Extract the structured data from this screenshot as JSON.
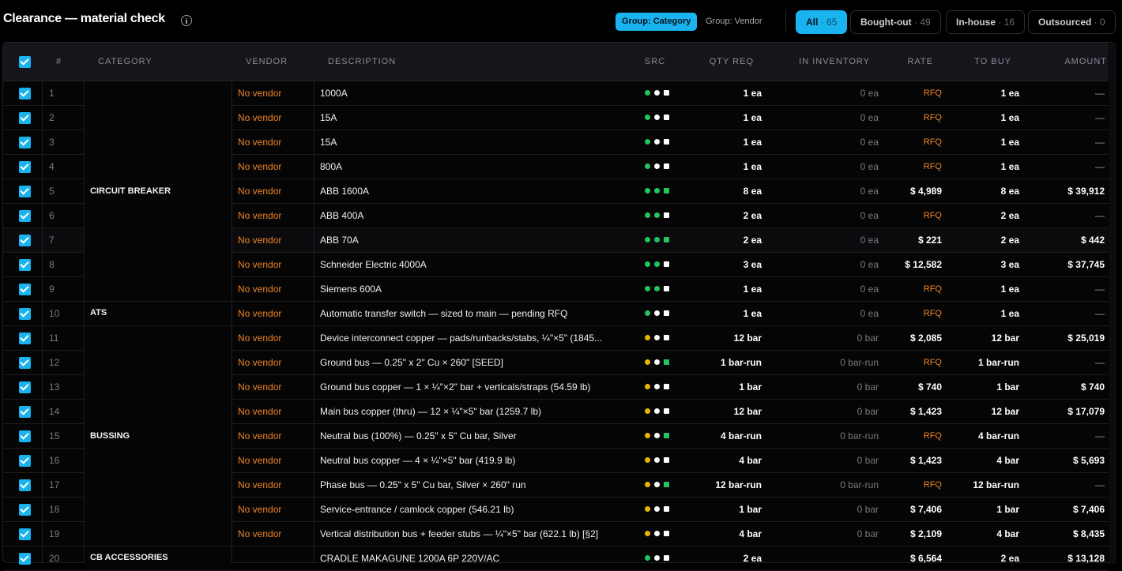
{
  "header": {
    "title": "Clearance — material check",
    "group_by": [
      {
        "label": "Group: Category",
        "active": true
      },
      {
        "label": "Group: Vendor",
        "active": false
      }
    ],
    "filters": [
      {
        "label": "All",
        "count": "65",
        "active": true
      },
      {
        "label": "Bought-out",
        "count": "49",
        "active": false
      },
      {
        "label": "In-house",
        "count": "16",
        "active": false
      },
      {
        "label": "Outsourced",
        "count": "0",
        "active": false
      }
    ]
  },
  "columns": [
    "#",
    "CATEGORY",
    "VENDOR",
    "DESCRIPTION",
    "SRC",
    "QTY REQ",
    "IN INVENTORY",
    "RATE",
    "TO BUY",
    "AMOUNT"
  ],
  "colors": {
    "accent": "#19b4ef",
    "orange": "#ee8427",
    "green": "#22c55e",
    "yellow": "#eab308",
    "white": "#ffffff"
  },
  "categories": [
    {
      "label": "CIRCUIT BREAKER",
      "first_row": 1,
      "last_row": 9
    },
    {
      "label": "ATS",
      "first_row": 10,
      "last_row": 10
    },
    {
      "label": "BUSSING",
      "first_row": 11,
      "last_row": 19
    },
    {
      "label": "CB ACCESSORIES",
      "first_row": 20,
      "last_row": 20
    }
  ],
  "rows": [
    {
      "num": "1",
      "vendor": "No vendor",
      "desc": "1000A",
      "src": [
        "green",
        "white",
        "wsq"
      ],
      "qty": "1 ea",
      "inv": "0 ea",
      "rate": "RFQ",
      "buy": "1 ea",
      "amount": "—"
    },
    {
      "num": "2",
      "vendor": "No vendor",
      "desc": "15A",
      "src": [
        "green",
        "white",
        "wsq"
      ],
      "qty": "1 ea",
      "inv": "0 ea",
      "rate": "RFQ",
      "buy": "1 ea",
      "amount": "—"
    },
    {
      "num": "3",
      "vendor": "No vendor",
      "desc": "15A",
      "src": [
        "green",
        "white",
        "wsq"
      ],
      "qty": "1 ea",
      "inv": "0 ea",
      "rate": "RFQ",
      "buy": "1 ea",
      "amount": "—"
    },
    {
      "num": "4",
      "vendor": "No vendor",
      "desc": "800A",
      "src": [
        "green",
        "white",
        "wsq"
      ],
      "qty": "1 ea",
      "inv": "0 ea",
      "rate": "RFQ",
      "buy": "1 ea",
      "amount": "—"
    },
    {
      "num": "5",
      "vendor": "No vendor",
      "desc": "ABB 1600A",
      "src": [
        "green",
        "green",
        "gsq"
      ],
      "qty": "8 ea",
      "inv": "0 ea",
      "rate": "$ 4,989",
      "buy": "8 ea",
      "amount": "$ 39,912"
    },
    {
      "num": "6",
      "vendor": "No vendor",
      "desc": "ABB 400A",
      "src": [
        "green",
        "green",
        "wsq"
      ],
      "qty": "2 ea",
      "inv": "0 ea",
      "rate": "RFQ",
      "buy": "2 ea",
      "amount": "—"
    },
    {
      "num": "7",
      "vendor": "No vendor",
      "desc": "ABB 70A",
      "src": [
        "green",
        "green",
        "gsq"
      ],
      "qty": "2 ea",
      "inv": "0 ea",
      "rate": "$ 221",
      "buy": "2 ea",
      "amount": "$ 442"
    },
    {
      "num": "8",
      "vendor": "No vendor",
      "desc": "Schneider Electric 4000A",
      "src": [
        "green",
        "green",
        "wsq"
      ],
      "qty": "3 ea",
      "inv": "0 ea",
      "rate": "$ 12,582",
      "buy": "3 ea",
      "amount": "$ 37,745"
    },
    {
      "num": "9",
      "vendor": "No vendor",
      "desc": "Siemens 600A",
      "src": [
        "green",
        "green",
        "wsq"
      ],
      "qty": "1 ea",
      "inv": "0 ea",
      "rate": "RFQ",
      "buy": "1 ea",
      "amount": "—"
    },
    {
      "num": "10",
      "vendor": "No vendor",
      "desc": "Automatic transfer switch — sized to main — pending RFQ",
      "src": [
        "green",
        "white",
        "wsq"
      ],
      "qty": "1 ea",
      "inv": "0 ea",
      "rate": "RFQ",
      "buy": "1 ea",
      "amount": "—"
    },
    {
      "num": "11",
      "vendor": "No vendor",
      "desc": "Device interconnect copper — pads/runbacks/stabs, ¼\"×5\" (1845...",
      "src": [
        "yellow",
        "white",
        "wsq"
      ],
      "qty": "12 bar",
      "inv": "0 bar",
      "rate": "$ 2,085",
      "buy": "12 bar",
      "amount": "$ 25,019"
    },
    {
      "num": "12",
      "vendor": "No vendor",
      "desc": "Ground bus — 0.25\" x 2\" Cu × 260\" [SEED]",
      "src": [
        "yellow",
        "white",
        "gsq"
      ],
      "qty": "1 bar-run",
      "inv": "0 bar-run",
      "rate": "RFQ",
      "buy": "1 bar-run",
      "amount": "—"
    },
    {
      "num": "13",
      "vendor": "No vendor",
      "desc": "Ground bus copper — 1 × ¼\"×2\" bar + verticals/straps (54.59 lb)",
      "src": [
        "yellow",
        "white",
        "wsq"
      ],
      "qty": "1 bar",
      "inv": "0 bar",
      "rate": "$ 740",
      "buy": "1 bar",
      "amount": "$ 740"
    },
    {
      "num": "14",
      "vendor": "No vendor",
      "desc": "Main bus copper (thru) — 12 × ¼\"×5\" bar (1259.7 lb)",
      "src": [
        "yellow",
        "white",
        "wsq"
      ],
      "qty": "12 bar",
      "inv": "0 bar",
      "rate": "$ 1,423",
      "buy": "12 bar",
      "amount": "$ 17,079"
    },
    {
      "num": "15",
      "vendor": "No vendor",
      "desc": "Neutral bus (100%) — 0.25\" x 5\" Cu bar, Silver",
      "src": [
        "yellow",
        "white",
        "gsq"
      ],
      "qty": "4 bar-run",
      "inv": "0 bar-run",
      "rate": "RFQ",
      "buy": "4 bar-run",
      "amount": "—"
    },
    {
      "num": "16",
      "vendor": "No vendor",
      "desc": "Neutral bus copper — 4 × ¼\"×5\" bar (419.9 lb)",
      "src": [
        "yellow",
        "white",
        "wsq"
      ],
      "qty": "4 bar",
      "inv": "0 bar",
      "rate": "$ 1,423",
      "buy": "4 bar",
      "amount": "$ 5,693"
    },
    {
      "num": "17",
      "vendor": "No vendor",
      "desc": "Phase bus — 0.25\" x 5\" Cu bar, Silver × 260\" run",
      "src": [
        "yellow",
        "white",
        "gsq"
      ],
      "qty": "12 bar-run",
      "inv": "0 bar-run",
      "rate": "RFQ",
      "buy": "12 bar-run",
      "amount": "—"
    },
    {
      "num": "18",
      "vendor": "No vendor",
      "desc": "Service-entrance / camlock copper (546.21 lb)",
      "src": [
        "yellow",
        "white",
        "wsq"
      ],
      "qty": "1 bar",
      "inv": "0 bar",
      "rate": "$ 7,406",
      "buy": "1 bar",
      "amount": "$ 7,406"
    },
    {
      "num": "19",
      "vendor": "No vendor",
      "desc": "Vertical distribution bus + feeder stubs — ¼\"×5\" bar (622.1 lb) [§2]",
      "src": [
        "yellow",
        "white",
        "wsq"
      ],
      "qty": "4 bar",
      "inv": "0 bar",
      "rate": "$ 2,109",
      "buy": "4 bar",
      "amount": "$ 8,435"
    },
    {
      "num": "20",
      "vendor": "",
      "desc": "CRADLE MAKAGUNE 1200A 6P 220V/AC",
      "src": [
        "green",
        "white",
        "wsq"
      ],
      "qty": "2 ea",
      "inv": "",
      "rate": "$ 6,564",
      "buy": "2 ea",
      "amount": "$ 13,128"
    }
  ]
}
